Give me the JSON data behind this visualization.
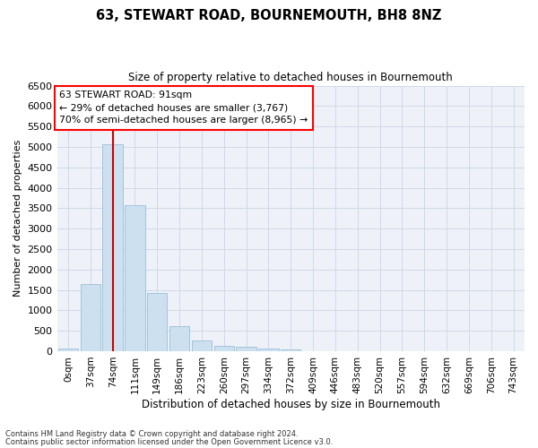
{
  "title": "63, STEWART ROAD, BOURNEMOUTH, BH8 8NZ",
  "subtitle": "Size of property relative to detached houses in Bournemouth",
  "xlabel": "Distribution of detached houses by size in Bournemouth",
  "ylabel": "Number of detached properties",
  "footnote1": "Contains HM Land Registry data © Crown copyright and database right 2024.",
  "footnote2": "Contains public sector information licensed under the Open Government Licence v3.0.",
  "bar_labels": [
    "0sqm",
    "37sqm",
    "74sqm",
    "111sqm",
    "149sqm",
    "186sqm",
    "223sqm",
    "260sqm",
    "297sqm",
    "334sqm",
    "372sqm",
    "409sqm",
    "446sqm",
    "483sqm",
    "520sqm",
    "557sqm",
    "594sqm",
    "632sqm",
    "669sqm",
    "706sqm",
    "743sqm"
  ],
  "bar_values": [
    55,
    1640,
    5060,
    3580,
    1430,
    620,
    270,
    130,
    100,
    70,
    50,
    0,
    0,
    0,
    0,
    0,
    0,
    0,
    0,
    0,
    0
  ],
  "bar_color": "#cce0f0",
  "bar_edge_color": "#9bbdd8",
  "highlight_bar_index": 2,
  "highlight_color": "#cc0000",
  "ylim": [
    0,
    6500
  ],
  "yticks": [
    0,
    500,
    1000,
    1500,
    2000,
    2500,
    3000,
    3500,
    4000,
    4500,
    5000,
    5500,
    6000,
    6500
  ],
  "annotation_text": "63 STEWART ROAD: 91sqm\n← 29% of detached houses are smaller (3,767)\n70% of semi-detached houses are larger (8,965) →",
  "grid_color": "#d0d8e8",
  "bg_color": "#eef2f8"
}
